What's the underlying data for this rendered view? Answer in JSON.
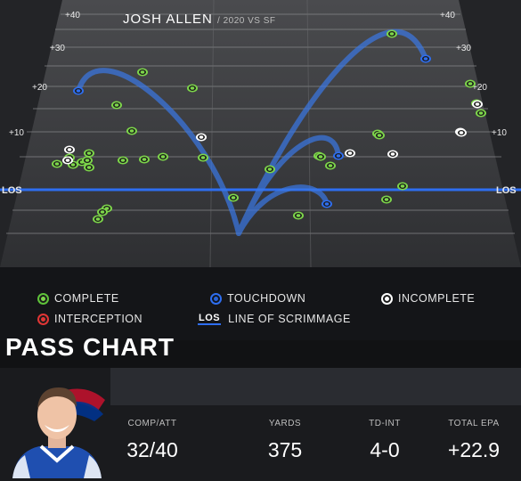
{
  "field": {
    "yard_markers": [
      "+40",
      "+30",
      "+20",
      "+10"
    ],
    "los_label": "LOS"
  },
  "legend": {
    "complete": "COMPLETE",
    "touchdown": "TOUCHDOWN",
    "incomplete": "INCOMPLETE",
    "interception": "INTERCEPTION",
    "los_badge": "LOS",
    "line_of_scrimmage": "LINE OF SCRIMMAGE"
  },
  "title": "PASS CHART",
  "player": {
    "name": "JOSH ALLEN",
    "subtitle": "/ 2020 VS SF"
  },
  "stats": [
    {
      "label": "COMP/ATT",
      "value": "32/40"
    },
    {
      "label": "YARDS",
      "value": "375"
    },
    {
      "label": "TD-INT",
      "value": "4-0"
    },
    {
      "label": "TOTAL EPA",
      "value": "+22.9"
    }
  ],
  "colors": {
    "complete": "#7dd64a",
    "touchdown": "#2e6ef0",
    "incomplete": "#ffffff",
    "interception": "#e03535",
    "los_line": "#2e6ef0",
    "field": "#3b3c3f"
  },
  "passes": {
    "complete": 32,
    "incomplete": 8,
    "touchdown": 4,
    "interception": 0
  }
}
